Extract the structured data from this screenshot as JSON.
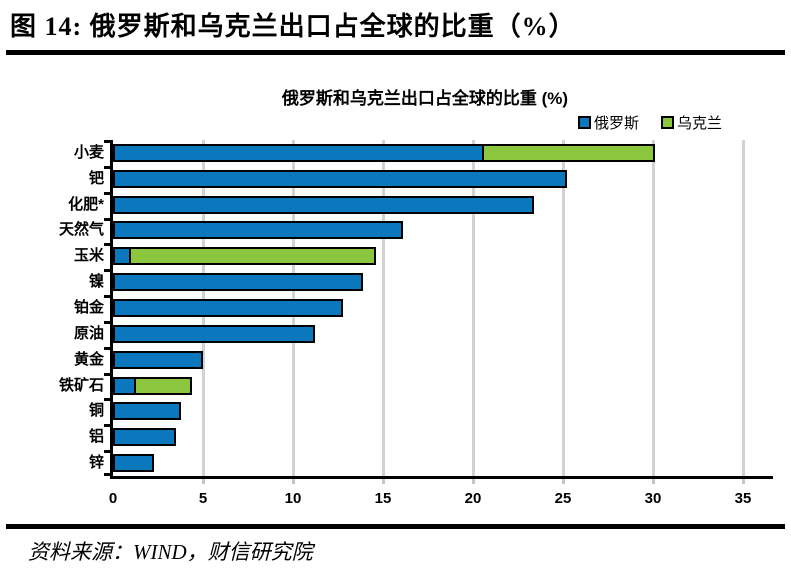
{
  "header": {
    "title": "图 14:  俄罗斯和乌克兰出口占全球的比重（%）"
  },
  "footer": {
    "source": "资料来源：WIND，财信研究院"
  },
  "chart_data": {
    "type": "bar",
    "orientation": "horizontal",
    "stacked": true,
    "title": "俄罗斯和乌克兰出口占全球的比重 (%)",
    "categories": [
      "小麦",
      "钯",
      "化肥*",
      "天然气",
      "玉米",
      "镍",
      "铂金",
      "原油",
      "黄金",
      "铁矿石",
      "铜",
      "铝",
      "锌"
    ],
    "series": [
      {
        "name": "俄罗斯",
        "color": "#0B78BE",
        "values": [
          20.6,
          25.2,
          23.4,
          16.1,
          1.0,
          13.9,
          12.8,
          11.2,
          5.0,
          1.3,
          3.8,
          3.5,
          2.3
        ]
      },
      {
        "name": "乌克兰",
        "color": "#8CC63F",
        "values": [
          9.5,
          0,
          0,
          0,
          13.6,
          0,
          0,
          0,
          0,
          3.1,
          0,
          0,
          0
        ]
      }
    ],
    "xlim": [
      0,
      35
    ],
    "xticks": [
      0,
      5,
      10,
      15,
      20,
      25,
      30,
      35
    ],
    "legend_position": "top-right",
    "grid": "vertical",
    "gridline_color": "#d2d2d2",
    "axis_color": "#000000",
    "bar_border_color": "#000000"
  }
}
